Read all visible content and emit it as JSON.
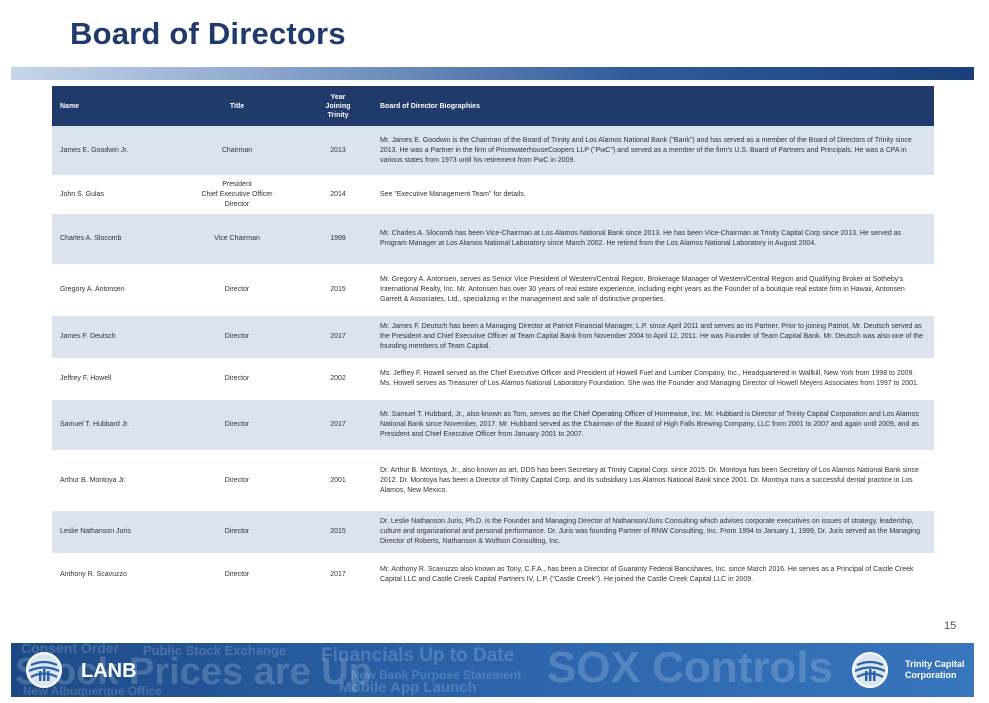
{
  "title": "Board of Directors",
  "table": {
    "headers": {
      "name": "Name",
      "title": "Title",
      "year_line1": "Year",
      "year_line2": "Joining",
      "year_line3": "Trinity",
      "bio": "Board of Director Biographies"
    },
    "rows": [
      {
        "name": "James E. Goodwin Jr.",
        "title_lines": [
          "Chairman"
        ],
        "year": "2013",
        "bio": "Mr. James E. Goodwin is the Chairman of the Board of Trinity and Los Alamos National Bank (\"Bank\") and has served as a member of the Board of Directors of Trinity since 2013. He was a Partner in the firm of PricewaterhouseCoopers LLP (\"PwC\") and served as a member of the firm's U.S. Board of Partners and Principals. He was a CPA in various states from 1973 until his retirement from PwC in 2009."
      },
      {
        "name": "John S. Gulas",
        "title_lines": [
          "President",
          "Chief Executive Officer",
          "Director"
        ],
        "year": "2014",
        "bio": "See \"Executive Management Team\" for details."
      },
      {
        "name": "Charles A. Slocomb",
        "title_lines": [
          "Vice Chairman"
        ],
        "year": "1999",
        "bio": "Mr. Charles A. Slocomb has been Vice-Chairman at Los Alamos National Bank since 2013. He has been Vice-Chairman at Trinity Capital Corp since 2013. He served as Program Manager at Los Alamos National Laboratory since March 2002. He retired from the Los Alamos National Laboratory in August 2004."
      },
      {
        "name": "Gregory A. Antonsen",
        "title_lines": [
          "Director"
        ],
        "year": "2015",
        "bio": "Mr. Gregory A. Antonsen, serves as Senior Vice President of Western/Central Region, Brokerage Manager of Western/Central Region and Qualifying Broker at Sotheby's International Realty, Inc. Mr. Antonsen has over 30 years of real estate experience, including eight years as the Founder of a boutique real estate firm in Hawaii, Antonsen Garrett & Associates, Ltd., specializing in the management and sale of distinctive properties."
      },
      {
        "name": "James F. Deutsch",
        "title_lines": [
          "Director"
        ],
        "year": "2017",
        "bio": "Mr. James F. Deutsch has been a Managing Director at Patriot Financial Manager, L.P. since April 2011 and serves as its Partner. Prior to joining Patriot, Mr. Deutsch served as the President and Chief Executive Officer at Team Capital Bank from November 2004 to April 12, 2011. He was Founder of Team Capital Bank. Mr. Deutsch was also one of the founding members of Team Capital."
      },
      {
        "name": "Jeffrey F. Howell",
        "title_lines": [
          "Director"
        ],
        "year": "2002",
        "bio": "Ms. Jeffrey F. Howell served as the Chief Executive Officer and President of Howell Fuel and Lumber Company, Inc., Headquartered in Wallkill, New York from 1998 to 2009. Ms. Howell serves as Treasurer of Los Alamos National Laboratory Foundation. She was the Founder and Managing Director of Howell Meyers Associates from 1997 to 2001."
      },
      {
        "name": "Samuel T. Hubbard Jr.",
        "title_lines": [
          "Director"
        ],
        "year": "2017",
        "bio": "Mr. Samuel T. Hubbard, Jr., also known as Tom, serves as the Chief Operating Officer of Homewise, Inc. Mr. Hubbard is Director of Trinity Capital Corporation and Los Alamos National Bank since November, 2017. Mr. Hubbard served as the Chairman of the Board of High Falls Brewing Company, LLC from 2001 to 2007 and again until 2009, and as President and Chief Executive Officer from January 2001 to 2007."
      },
      {
        "name": "Arthur B. Montoya Jr.",
        "title_lines": [
          "Director"
        ],
        "year": "2001",
        "bio": "Dr. Arthur B. Montoya, Jr., also known as art, DDS has been Secretary at Trinity Capital Corp. since 2015. Dr. Montoya has been Secretary of Los Alamos National Bank since 2012. Dr. Montoya has been a Director of Trinity Capital Corp. and its subsidiary Los Alamos National Bank since 2001. Dr. Montoya runs a successful dental practice in Los Alamos, New Mexico."
      },
      {
        "name": "Leslie Nathanson Juris",
        "title_lines": [
          "Director"
        ],
        "year": "2015",
        "bio": "Dr. Leslie Nathanson Juris, Ph.D. is the Founder and Managing Director of Nathanson/Juris Consulting which advises corporate executives on issues of strategy, leadership, culture and organizational and personal performance. Dr. Juris was founding Partner of RNW Consulting, Inc. From 1994 to January 1, 1999, Dr. Juris served as the Managing Director of Roberts, Nathanson & Wolfson Consulting, Inc."
      },
      {
        "name": "Anthony R. Scavuzzo",
        "title_lines": [
          "Director"
        ],
        "year": "2017",
        "bio": "Mr. Anthony R. Scavuzzo also known as Tony, C.F.A., has been a Director of Guaranty Federal Bancshares, Inc. since March 2016. He serves as a Principal of Castle Creek Capital LLC and Castle Creek Capital Partners IV, L.P. (\"Castle Creek\"). He joined the Castle Creek Capital LLC in 2009."
      }
    ]
  },
  "page_number": "15",
  "footer": {
    "watermarks": [
      "Consent Order",
      "Public Stock Exchange",
      "Financials Up to Date",
      "Stock Prices are Up",
      "New Bank Purpose Statement",
      "SOX Controls",
      "New Albuquerque Office",
      "Mobile App Launch"
    ],
    "left_brand": "LANB",
    "right_brand_line1": "Trinity Capital",
    "right_brand_line2": "Corporation",
    "left_logo_icon": "globe-logo-icon",
    "right_logo_icon": "globe-logo-icon"
  },
  "colors": {
    "title": "#1f3a6b",
    "header_bg": "#1f3a6b",
    "row_shade": "#dbe3ef",
    "footer_bg": "#2a62a8"
  }
}
